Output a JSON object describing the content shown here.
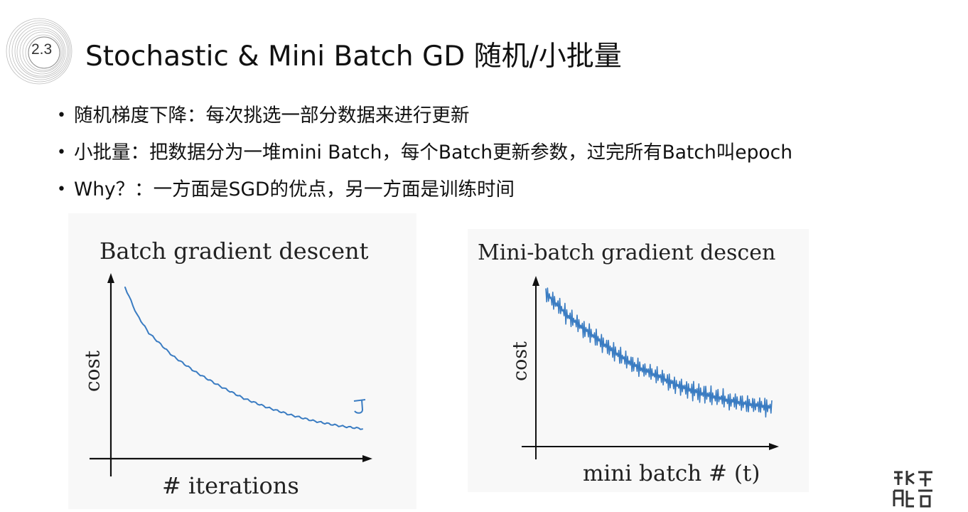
{
  "slide": {
    "number": "2.3",
    "title": "Stochastic & Mini Batch GD 随机/小批量"
  },
  "bullets": [
    {
      "symbol": "•",
      "text": "随机梯度下降：每次挑选一部分数据来进行更新"
    },
    {
      "symbol": "•",
      "text": "小批量：把数据分为一堆mini Batch，每个Batch更新参数，过完所有Batch叫epoch"
    },
    {
      "symbol": "•",
      "text": "Why？：一方面是SGD的优点，另一方面是训练时间"
    }
  ],
  "figures": [
    {
      "title": "Batch gradient descent",
      "xlabel": "# iterations",
      "ylabel": "cost",
      "annotation": "J",
      "curve_color": "#3a7cc2"
    },
    {
      "title": "Mini-batch gradient descen",
      "xlabel": "mini batch # (t)",
      "ylabel": "cost",
      "curve_color": "#3a7cc2"
    }
  ],
  "chart_data": [
    {
      "type": "line",
      "title": "Batch gradient descent",
      "xlabel": "# iterations",
      "ylabel": "cost",
      "x": [
        0,
        0.05,
        0.1,
        0.2,
        0.3,
        0.4,
        0.5,
        0.6,
        0.7,
        0.8,
        0.9,
        1.0
      ],
      "series": [
        {
          "values": [
            1.0,
            0.82,
            0.7,
            0.55,
            0.44,
            0.35,
            0.27,
            0.21,
            0.16,
            0.12,
            0.09,
            0.07
          ]
        }
      ],
      "grid": false
    },
    {
      "type": "line",
      "title": "Mini-batch gradient descen",
      "xlabel": "mini batch # (t)",
      "ylabel": "cost",
      "x": [
        0,
        0.1,
        0.2,
        0.3,
        0.4,
        0.5,
        0.6,
        0.7,
        0.8,
        0.9,
        1.0
      ],
      "series": [
        {
          "values": [
            0.98,
            0.82,
            0.7,
            0.58,
            0.48,
            0.41,
            0.34,
            0.29,
            0.25,
            0.22,
            0.2
          ]
        }
      ],
      "noise": "high-frequency oscillation",
      "grid": false
    }
  ],
  "watermark": {
    "icon": "logo-icon",
    "color": "#333333"
  }
}
